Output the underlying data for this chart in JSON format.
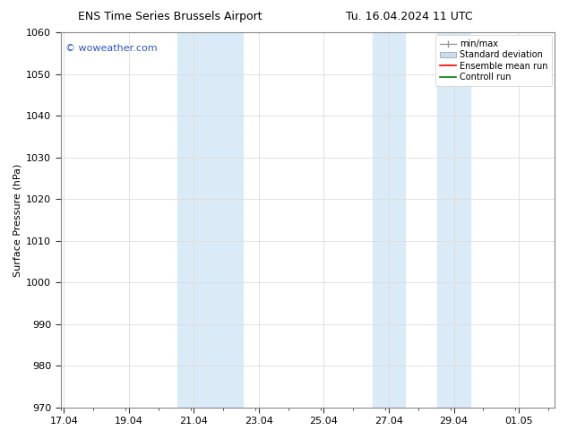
{
  "title_left": "ENS Time Series Brussels Airport",
  "title_right": "Tu. 16.04.2024 11 UTC",
  "ylabel": "Surface Pressure (hPa)",
  "ylim": [
    970,
    1060
  ],
  "yticks": [
    970,
    980,
    990,
    1000,
    1010,
    1020,
    1030,
    1040,
    1050,
    1060
  ],
  "xtick_labels": [
    "17.04",
    "19.04",
    "21.04",
    "23.04",
    "25.04",
    "27.04",
    "29.04",
    "01.05"
  ],
  "xtick_positions": [
    0,
    2,
    4,
    6,
    8,
    10,
    12,
    14
  ],
  "xlim": [
    -0.1,
    15.1
  ],
  "shade_bands": [
    {
      "x_start": 3.5,
      "x_end": 5.5,
      "color": "#dbeaf7"
    },
    {
      "x_start": 9.5,
      "x_end": 10.5,
      "color": "#dbeaf7"
    },
    {
      "x_start": 11.5,
      "x_end": 12.5,
      "color": "#dbeaf7"
    }
  ],
  "watermark_text": "© woweather.com",
  "watermark_color": "#3355bb",
  "watermark_fontsize": 8,
  "legend_labels": [
    "min/max",
    "Standard deviation",
    "Ensemble mean run",
    "Controll run"
  ],
  "legend_colors_line": [
    "#aaaaaa",
    "#c8ddef",
    "red",
    "green"
  ],
  "bg_color": "#ffffff",
  "plot_bg_color": "#ffffff",
  "grid_color": "#dddddd",
  "spine_color": "#888888",
  "tick_color": "#333333",
  "font_size": 8,
  "title_font_size": 9,
  "ylabel_fontsize": 8
}
